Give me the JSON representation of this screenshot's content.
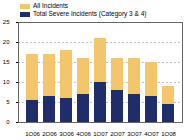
{
  "chart_data": {
    "type": "bar",
    "stacked": false,
    "categories": [
      "1Q06",
      "2Q06",
      "3Q06",
      "4Q06",
      "1Q07",
      "2Q07",
      "3Q07",
      "4Q07",
      "1Q08"
    ],
    "series": [
      {
        "name": "All Incidents",
        "color": "#f3c66b",
        "values": [
          17,
          17,
          18,
          16,
          21,
          16,
          16,
          15,
          9
        ]
      },
      {
        "name": "Total Severe Incidents (Category 3 & 4)",
        "color": "#1f2d6b",
        "values": [
          5.5,
          6.5,
          6,
          7,
          10,
          8,
          7,
          6.5,
          4.5
        ]
      }
    ],
    "ylim": [
      0,
      25
    ],
    "yticks": [
      0,
      5,
      10,
      15,
      20,
      25
    ],
    "grid": true,
    "legend": "top-left"
  }
}
